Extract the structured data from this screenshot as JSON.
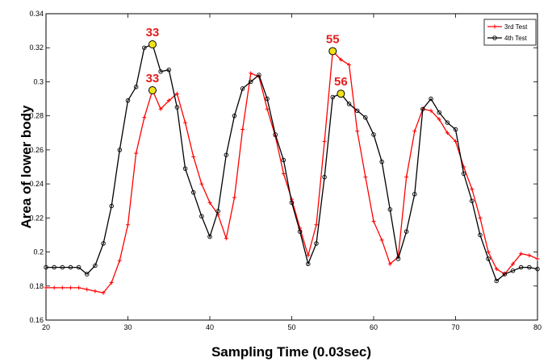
{
  "chart_data": {
    "type": "line",
    "title": "",
    "xlabel": "Sampling Time (0.03sec)",
    "ylabel": "Area of lower body",
    "xlim": [
      20,
      80
    ],
    "ylim": [
      0.16,
      0.34
    ],
    "grid": false,
    "legend_position": "top-right",
    "x_ticks": [
      20,
      30,
      40,
      50,
      60,
      70,
      80
    ],
    "x_tick_labels": [
      "20",
      "30",
      "40",
      "50",
      "60",
      "70",
      "80"
    ],
    "y_ticks": [
      0.16,
      0.18,
      0.2,
      0.22,
      0.24,
      0.26,
      0.28,
      0.3,
      0.32,
      0.34
    ],
    "y_tick_labels": [
      "0.16",
      "0.18",
      "0.2",
      "0.22",
      "0.24",
      "0.26",
      "0.28",
      "0.3",
      "0.32",
      "0.34"
    ],
    "x": [
      20,
      21,
      22,
      23,
      24,
      25,
      26,
      27,
      28,
      29,
      30,
      31,
      32,
      33,
      34,
      35,
      36,
      37,
      38,
      39,
      40,
      41,
      42,
      43,
      44,
      45,
      46,
      47,
      48,
      49,
      50,
      51,
      52,
      53,
      54,
      55,
      56,
      57,
      58,
      59,
      60,
      61,
      62,
      63,
      64,
      65,
      66,
      67,
      68,
      69,
      70,
      71,
      72,
      73,
      74,
      75,
      76,
      77,
      78,
      79,
      80
    ],
    "series": [
      {
        "name": "3rd Test",
        "color": "#ff0000",
        "marker": "plus",
        "values": [
          0.179,
          0.179,
          0.179,
          0.179,
          0.179,
          0.178,
          0.177,
          0.176,
          0.182,
          0.195,
          0.216,
          0.258,
          0.279,
          0.295,
          0.284,
          0.289,
          0.293,
          0.276,
          0.256,
          0.24,
          0.229,
          0.222,
          0.208,
          0.232,
          0.272,
          0.305,
          0.303,
          0.284,
          0.268,
          0.246,
          0.231,
          0.214,
          0.198,
          0.216,
          0.265,
          0.318,
          0.313,
          0.31,
          0.271,
          0.244,
          0.218,
          0.207,
          0.193,
          0.197,
          0.244,
          0.271,
          0.284,
          0.283,
          0.278,
          0.27,
          0.265,
          0.25,
          0.237,
          0.22,
          0.2,
          0.19,
          0.187,
          0.193,
          0.199,
          0.198,
          0.196
        ]
      },
      {
        "name": "4th Test",
        "color": "#000000",
        "marker": "circle",
        "values": [
          0.191,
          0.191,
          0.191,
          0.191,
          0.191,
          0.187,
          0.192,
          0.205,
          0.227,
          0.26,
          0.289,
          0.297,
          0.32,
          0.322,
          0.306,
          0.307,
          0.285,
          0.249,
          0.235,
          0.221,
          0.209,
          0.224,
          0.257,
          0.28,
          0.296,
          0.3,
          0.304,
          0.29,
          0.269,
          0.254,
          0.229,
          0.212,
          0.193,
          0.205,
          0.244,
          0.291,
          0.293,
          0.287,
          0.283,
          0.279,
          0.269,
          0.253,
          0.225,
          0.196,
          0.212,
          0.234,
          0.284,
          0.29,
          0.282,
          0.276,
          0.272,
          0.246,
          0.23,
          0.21,
          0.196,
          0.183,
          0.187,
          0.189,
          0.191,
          0.191,
          0.19
        ]
      }
    ],
    "annotations": [
      {
        "label": "33",
        "x": 33,
        "y": 0.322,
        "series": "4th Test"
      },
      {
        "label": "33",
        "x": 33,
        "y": 0.295,
        "series": "3rd Test"
      },
      {
        "label": "55",
        "x": 55,
        "y": 0.318,
        "series": "3rd Test"
      },
      {
        "label": "56",
        "x": 56,
        "y": 0.293,
        "series": "4th Test"
      }
    ]
  }
}
